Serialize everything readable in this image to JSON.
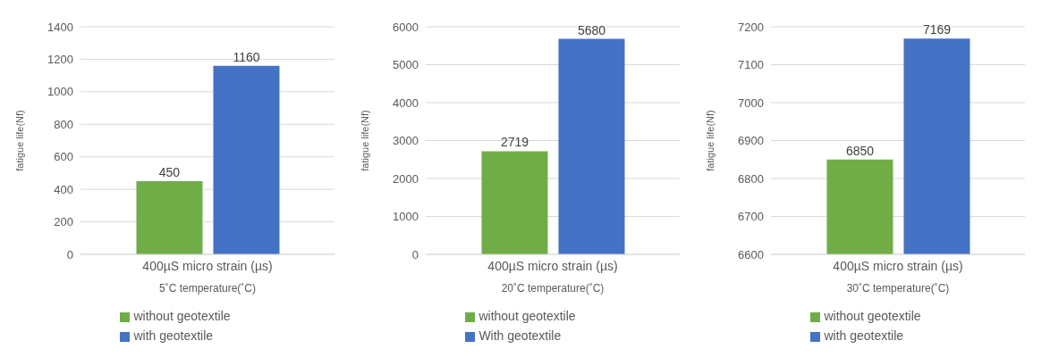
{
  "chart_data": [
    {
      "type": "bar",
      "categories": [
        "400µS  micro strain (µs)"
      ],
      "xlabel": "5˚C  temperature(˚C)",
      "ylabel": "fatigue life(Nf)",
      "ylim": [
        0,
        1400
      ],
      "yticks": [
        0,
        200,
        400,
        600,
        800,
        1000,
        1200,
        1400
      ],
      "grid": "y",
      "legend": "bottom",
      "data_labels": true,
      "series": [
        {
          "name": "without geotextile",
          "color": "#70ad47",
          "values": [
            450
          ]
        },
        {
          "name": "with geotextile",
          "color": "#4472c4",
          "values": [
            1160
          ]
        }
      ]
    },
    {
      "type": "bar",
      "categories": [
        "400µS  micro strain (µs)"
      ],
      "xlabel": "20˚C  temperature(˚C)",
      "ylabel": "fatigue life(Nf)",
      "ylim": [
        0,
        6000
      ],
      "yticks": [
        0,
        1000,
        2000,
        3000,
        4000,
        5000,
        6000
      ],
      "grid": "y",
      "legend": "bottom",
      "data_labels": true,
      "series": [
        {
          "name": "without geotextile",
          "color": "#70ad47",
          "values": [
            2719
          ]
        },
        {
          "name": "With geotextile",
          "color": "#4472c4",
          "values": [
            5680
          ]
        }
      ]
    },
    {
      "type": "bar",
      "categories": [
        "400µS  micro strain (µs)"
      ],
      "xlabel": "30˚C  temperature(˚C)",
      "ylabel": "fatigue life(Nf)",
      "ylim": [
        6600,
        7200
      ],
      "yticks": [
        6600,
        6700,
        6800,
        6900,
        7000,
        7100,
        7200
      ],
      "grid": "y",
      "legend": "bottom",
      "data_labels": true,
      "series": [
        {
          "name": "without geotextile",
          "color": "#70ad47",
          "values": [
            6850
          ]
        },
        {
          "name": "with geotextile",
          "color": "#4472c4",
          "values": [
            7169
          ]
        }
      ]
    }
  ]
}
